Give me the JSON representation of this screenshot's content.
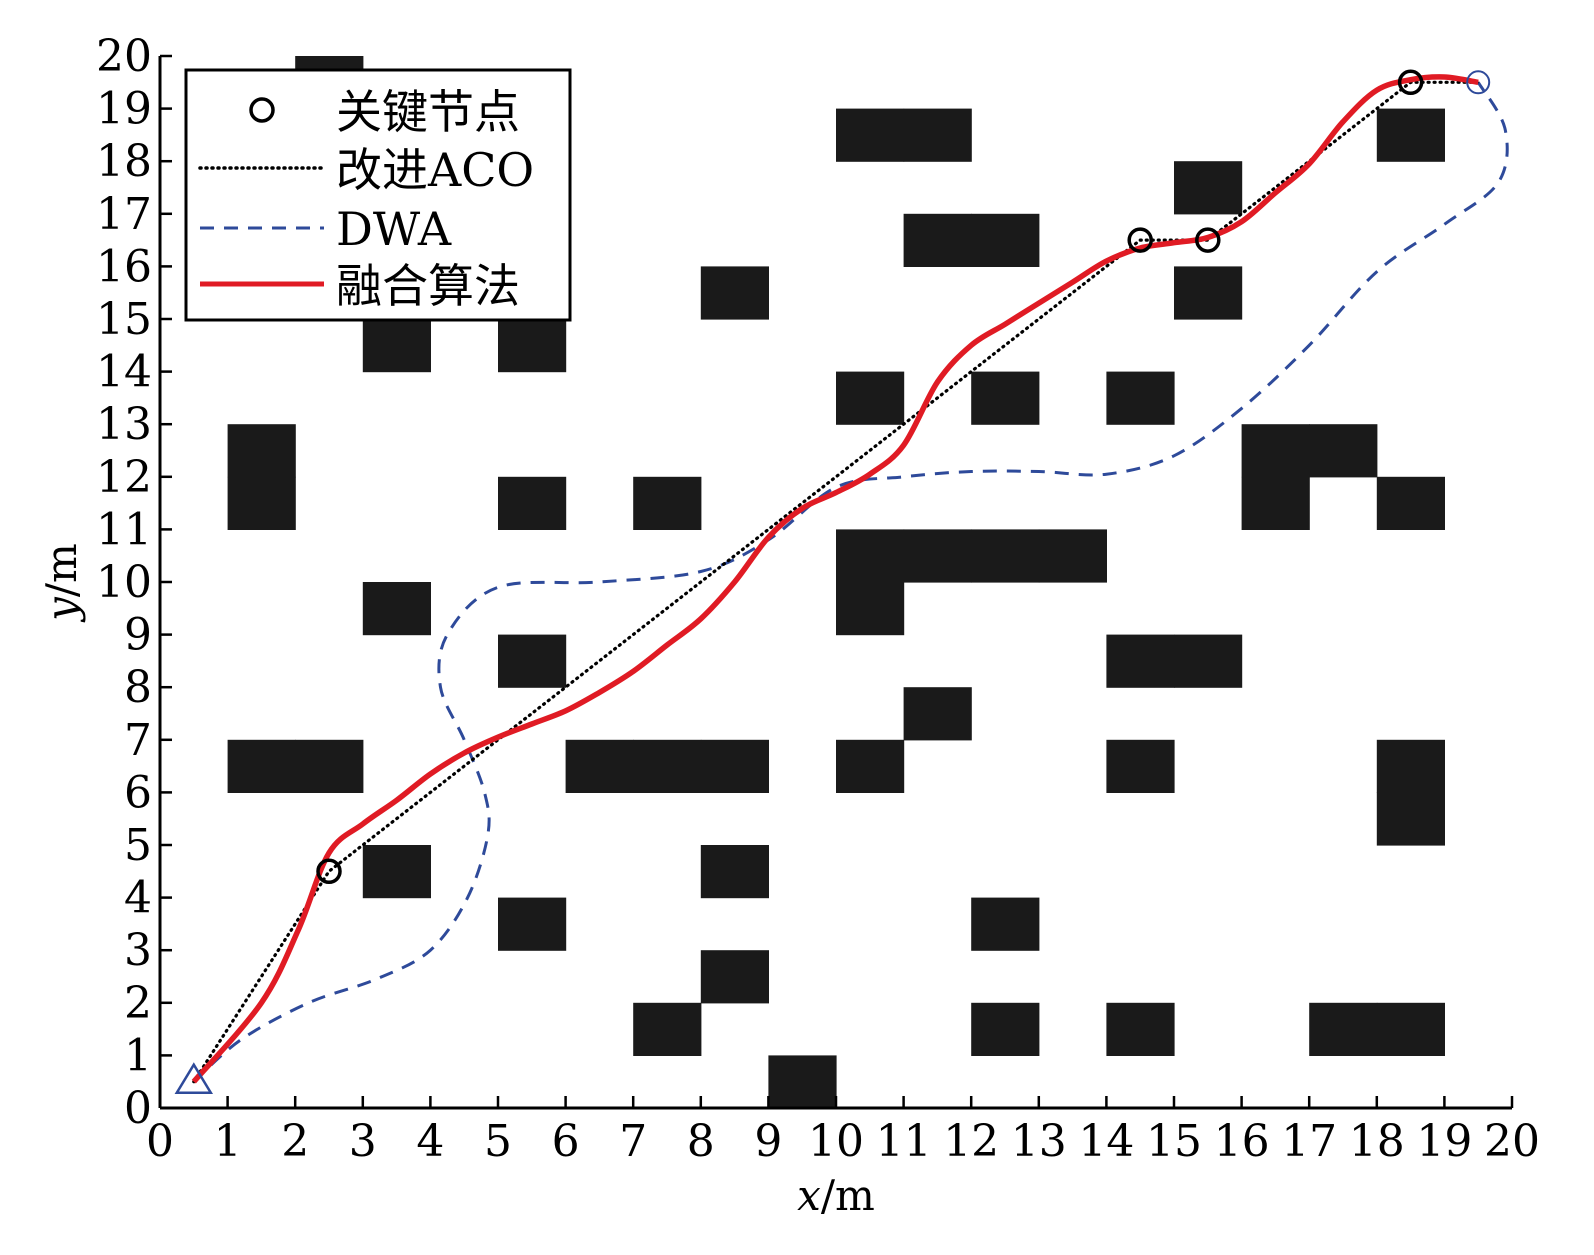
{
  "chart_data": {
    "type": "line",
    "title": "",
    "xlabel": {
      "var": "x",
      "unit": "/m"
    },
    "ylabel": {
      "var": "y",
      "unit": "/m"
    },
    "xlim": [
      0,
      20
    ],
    "ylim": [
      0,
      20
    ],
    "xticks": [
      "0",
      "1",
      "2",
      "3",
      "4",
      "5",
      "6",
      "7",
      "8",
      "9",
      "10",
      "11",
      "12",
      "13",
      "14",
      "15",
      "16",
      "17",
      "18",
      "19",
      "20"
    ],
    "yticks": [
      "0",
      "1",
      "2",
      "3",
      "4",
      "5",
      "6",
      "7",
      "8",
      "9",
      "10",
      "11",
      "12",
      "13",
      "14",
      "15",
      "16",
      "17",
      "18",
      "19",
      "20"
    ],
    "grid": false,
    "legend_position": "top-left",
    "obstacles": [
      [
        2,
        19
      ],
      [
        9,
        0
      ],
      [
        7,
        1
      ],
      [
        12,
        1
      ],
      [
        14,
        1
      ],
      [
        17,
        1
      ],
      [
        18,
        1
      ],
      [
        8,
        2
      ],
      [
        5,
        3
      ],
      [
        12,
        3
      ],
      [
        3,
        4
      ],
      [
        8,
        4
      ],
      [
        18,
        5
      ],
      [
        1,
        6
      ],
      [
        2,
        6
      ],
      [
        6,
        6
      ],
      [
        7,
        6
      ],
      [
        8,
        6
      ],
      [
        10,
        6
      ],
      [
        14,
        6
      ],
      [
        18,
        6
      ],
      [
        11,
        7
      ],
      [
        5,
        8
      ],
      [
        14,
        8
      ],
      [
        15,
        8
      ],
      [
        3,
        9
      ],
      [
        10,
        9
      ],
      [
        10,
        10
      ],
      [
        11,
        10
      ],
      [
        12,
        10
      ],
      [
        13,
        10
      ],
      [
        1,
        11
      ],
      [
        5,
        11
      ],
      [
        7,
        11
      ],
      [
        16,
        11
      ],
      [
        18,
        11
      ],
      [
        1,
        12
      ],
      [
        16,
        12
      ],
      [
        17,
        12
      ],
      [
        10,
        13
      ],
      [
        12,
        13
      ],
      [
        14,
        13
      ],
      [
        3,
        14
      ],
      [
        5,
        14
      ],
      [
        8,
        15
      ],
      [
        15,
        15
      ],
      [
        11,
        16
      ],
      [
        12,
        16
      ],
      [
        15,
        17
      ],
      [
        10,
        18
      ],
      [
        11,
        18
      ],
      [
        18,
        18
      ]
    ],
    "start": {
      "x": 0.5,
      "y": 0.5
    },
    "goal": {
      "x": 19.5,
      "y": 19.5
    },
    "series": [
      {
        "name": "关键节点",
        "style": "circle-markers",
        "color": "#000000",
        "points": [
          [
            2.5,
            4.5
          ],
          [
            14.5,
            16.5
          ],
          [
            15.5,
            16.5
          ],
          [
            18.5,
            19.5
          ]
        ]
      },
      {
        "name": "改进ACO",
        "style": "dotted",
        "color": "#000000",
        "points": [
          [
            0.5,
            0.5
          ],
          [
            2.5,
            4.5
          ],
          [
            14.5,
            16.5
          ],
          [
            15.5,
            16.5
          ],
          [
            18.5,
            19.5
          ],
          [
            19.5,
            19.5
          ]
        ]
      },
      {
        "name": "DWA",
        "style": "dashed",
        "color": "#2E4A9A",
        "points": [
          [
            0.5,
            0.5
          ],
          [
            1.2,
            1.3
          ],
          [
            2.2,
            2.0
          ],
          [
            3.2,
            2.45
          ],
          [
            4,
            3
          ],
          [
            4.55,
            4
          ],
          [
            4.85,
            5.2
          ],
          [
            4.8,
            6
          ],
          [
            4.5,
            7
          ],
          [
            4.15,
            8
          ],
          [
            4.25,
            9
          ],
          [
            5,
            9.9
          ],
          [
            6.5,
            10
          ],
          [
            8,
            10.2
          ],
          [
            9,
            10.8
          ],
          [
            10,
            11.8
          ],
          [
            11,
            12
          ],
          [
            12,
            12.1
          ],
          [
            13,
            12.1
          ],
          [
            14,
            12.05
          ],
          [
            15,
            12.4
          ],
          [
            16,
            13.3
          ],
          [
            17,
            14.5
          ],
          [
            18,
            15.9
          ],
          [
            19,
            16.8
          ],
          [
            19.8,
            17.6
          ],
          [
            19.9,
            18.6
          ],
          [
            19.5,
            19.5
          ]
        ]
      },
      {
        "name": "融合算法",
        "style": "solid",
        "color": "#E01B24",
        "points": [
          [
            0.5,
            0.5
          ],
          [
            1.5,
            2
          ],
          [
            2.05,
            3.4
          ],
          [
            2.5,
            4.85
          ],
          [
            3,
            5.4
          ],
          [
            3.5,
            5.85
          ],
          [
            4,
            6.35
          ],
          [
            4.5,
            6.75
          ],
          [
            5,
            7.05
          ],
          [
            5.5,
            7.3
          ],
          [
            6,
            7.55
          ],
          [
            6.5,
            7.9
          ],
          [
            7,
            8.3
          ],
          [
            7.5,
            8.8
          ],
          [
            8,
            9.3
          ],
          [
            8.5,
            10
          ],
          [
            9,
            10.85
          ],
          [
            9.5,
            11.4
          ],
          [
            10,
            11.7
          ],
          [
            10.5,
            12.05
          ],
          [
            11,
            12.6
          ],
          [
            11.5,
            13.8
          ],
          [
            12,
            14.5
          ],
          [
            12.5,
            14.9
          ],
          [
            13,
            15.3
          ],
          [
            13.5,
            15.7
          ],
          [
            14,
            16.1
          ],
          [
            14.5,
            16.35
          ],
          [
            15,
            16.45
          ],
          [
            15.5,
            16.55
          ],
          [
            16,
            16.85
          ],
          [
            16.5,
            17.4
          ],
          [
            17,
            17.95
          ],
          [
            17.5,
            18.75
          ],
          [
            18,
            19.35
          ],
          [
            18.5,
            19.55
          ],
          [
            19,
            19.6
          ],
          [
            19.5,
            19.5
          ]
        ]
      }
    ]
  },
  "colors": {
    "obstacle": "#1a1a1a",
    "axis": "#000000",
    "start_marker": "#2E4A9A",
    "goal_marker": "#2E4A9A"
  }
}
